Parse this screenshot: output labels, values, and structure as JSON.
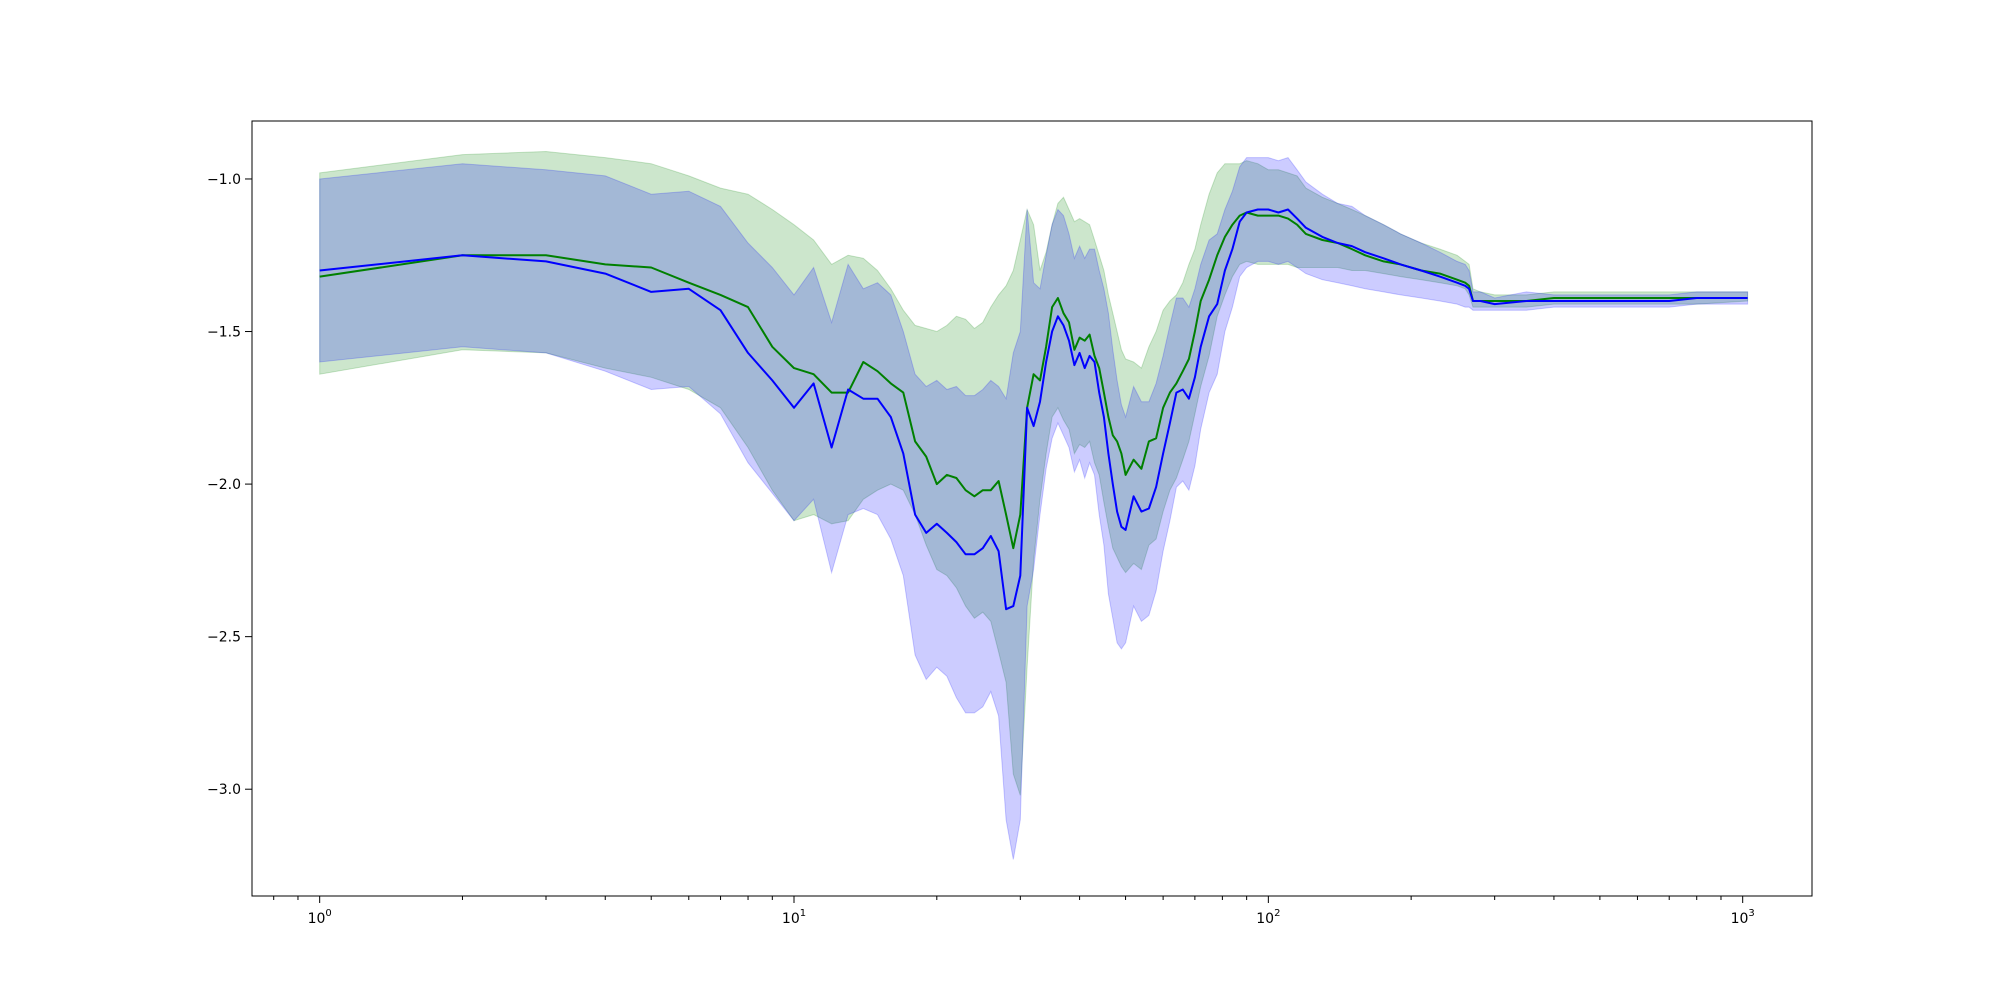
{
  "chart_data": {
    "type": "line",
    "title": "",
    "xlabel": "",
    "ylabel": "",
    "xscale": "log",
    "xlim": [
      0.72,
      1400
    ],
    "ylim": [
      -3.35,
      -0.81
    ],
    "grid": false,
    "x_ticks": [
      {
        "value": 1,
        "base": "10",
        "exp": "0"
      },
      {
        "value": 10,
        "base": "10",
        "exp": "1"
      },
      {
        "value": 100,
        "base": "10",
        "exp": "2"
      },
      {
        "value": 1000,
        "base": "10",
        "exp": "3"
      }
    ],
    "y_ticks": [
      {
        "value": -1.0,
        "label": "−1.0"
      },
      {
        "value": -1.5,
        "label": "−1.5"
      },
      {
        "value": -2.0,
        "label": "−2.0"
      },
      {
        "value": -2.5,
        "label": "−2.5"
      },
      {
        "value": -3.0,
        "label": "−3.0"
      }
    ],
    "series": [
      {
        "color": "#008000",
        "band_color": "#008000",
        "band_opacity": 0.2,
        "x": [
          1,
          2,
          3,
          4,
          5,
          6,
          7,
          8,
          9,
          10,
          11,
          12,
          13,
          14,
          15,
          16,
          17,
          18,
          19,
          20,
          21,
          22,
          23,
          24,
          25,
          26,
          27,
          28,
          29,
          30,
          31,
          32,
          33,
          34,
          35,
          36,
          37,
          38,
          39,
          40,
          41,
          42,
          43,
          44,
          45,
          46,
          47,
          48,
          49,
          50,
          52,
          54,
          56,
          58,
          60,
          62,
          64,
          66,
          68,
          70,
          72,
          75,
          78,
          81,
          84,
          87,
          90,
          95,
          100,
          105,
          110,
          115,
          120,
          130,
          140,
          150,
          160,
          175,
          190,
          210,
          230,
          250,
          260,
          265,
          270,
          280,
          300,
          350,
          400,
          500,
          600,
          700,
          800,
          1024
        ],
        "values": [
          -1.32,
          -1.25,
          -1.25,
          -1.28,
          -1.29,
          -1.34,
          -1.38,
          -1.42,
          -1.55,
          -1.62,
          -1.64,
          -1.7,
          -1.7,
          -1.6,
          -1.63,
          -1.67,
          -1.7,
          -1.86,
          -1.91,
          -2.0,
          -1.97,
          -1.98,
          -2.02,
          -2.04,
          -2.02,
          -2.02,
          -1.99,
          -2.1,
          -2.21,
          -2.1,
          -1.75,
          -1.64,
          -1.66,
          -1.55,
          -1.42,
          -1.39,
          -1.44,
          -1.47,
          -1.56,
          -1.52,
          -1.53,
          -1.51,
          -1.58,
          -1.62,
          -1.7,
          -1.78,
          -1.84,
          -1.86,
          -1.9,
          -1.97,
          -1.92,
          -1.95,
          -1.86,
          -1.85,
          -1.75,
          -1.7,
          -1.67,
          -1.63,
          -1.59,
          -1.5,
          -1.4,
          -1.33,
          -1.25,
          -1.19,
          -1.15,
          -1.12,
          -1.11,
          -1.12,
          -1.12,
          -1.12,
          -1.13,
          -1.15,
          -1.18,
          -1.2,
          -1.21,
          -1.23,
          -1.25,
          -1.27,
          -1.28,
          -1.3,
          -1.31,
          -1.33,
          -1.34,
          -1.35,
          -1.4,
          -1.4,
          -1.4,
          -1.4,
          -1.39,
          -1.39,
          -1.39,
          -1.39,
          -1.39,
          -1.39
        ],
        "lower": [
          -1.64,
          -1.56,
          -1.57,
          -1.62,
          -1.65,
          -1.69,
          -1.75,
          -1.88,
          -2.02,
          -2.12,
          -2.1,
          -2.13,
          -2.12,
          -2.05,
          -2.02,
          -2.0,
          -2.02,
          -2.1,
          -2.2,
          -2.28,
          -2.3,
          -2.34,
          -2.4,
          -2.44,
          -2.42,
          -2.45,
          -2.55,
          -2.65,
          -2.95,
          -3.02,
          -2.6,
          -2.25,
          -2.05,
          -1.9,
          -1.78,
          -1.75,
          -1.79,
          -1.82,
          -1.9,
          -1.87,
          -1.88,
          -1.86,
          -1.93,
          -1.97,
          -2.06,
          -2.14,
          -2.21,
          -2.24,
          -2.27,
          -2.29,
          -2.26,
          -2.28,
          -2.2,
          -2.18,
          -2.09,
          -2.02,
          -1.98,
          -1.92,
          -1.86,
          -1.77,
          -1.68,
          -1.58,
          -1.45,
          -1.38,
          -1.32,
          -1.28,
          -1.27,
          -1.28,
          -1.28,
          -1.28,
          -1.28,
          -1.29,
          -1.29,
          -1.29,
          -1.29,
          -1.3,
          -1.3,
          -1.31,
          -1.32,
          -1.33,
          -1.34,
          -1.35,
          -1.36,
          -1.38,
          -1.42,
          -1.42,
          -1.42,
          -1.42,
          -1.41,
          -1.41,
          -1.41,
          -1.41,
          -1.41,
          -1.4
        ],
        "upper": [
          -0.98,
          -0.92,
          -0.91,
          -0.93,
          -0.95,
          -0.99,
          -1.03,
          -1.05,
          -1.1,
          -1.15,
          -1.2,
          -1.28,
          -1.25,
          -1.26,
          -1.3,
          -1.36,
          -1.43,
          -1.48,
          -1.49,
          -1.5,
          -1.48,
          -1.45,
          -1.46,
          -1.49,
          -1.47,
          -1.42,
          -1.38,
          -1.35,
          -1.3,
          -1.2,
          -1.1,
          -1.15,
          -1.3,
          -1.24,
          -1.15,
          -1.08,
          -1.06,
          -1.1,
          -1.14,
          -1.13,
          -1.14,
          -1.15,
          -1.2,
          -1.25,
          -1.3,
          -1.38,
          -1.44,
          -1.5,
          -1.56,
          -1.59,
          -1.6,
          -1.62,
          -1.55,
          -1.5,
          -1.43,
          -1.4,
          -1.38,
          -1.34,
          -1.28,
          -1.23,
          -1.15,
          -1.05,
          -0.98,
          -0.95,
          -0.95,
          -0.95,
          -0.94,
          -0.95,
          -0.97,
          -0.97,
          -0.98,
          -0.99,
          -1.03,
          -1.06,
          -1.08,
          -1.1,
          -1.12,
          -1.15,
          -1.18,
          -1.21,
          -1.23,
          -1.25,
          -1.27,
          -1.28,
          -1.36,
          -1.37,
          -1.38,
          -1.38,
          -1.37,
          -1.37,
          -1.37,
          -1.37,
          -1.37,
          -1.37
        ]
      },
      {
        "color": "#0000ff",
        "band_color": "#0000ff",
        "band_opacity": 0.2,
        "x": [
          1,
          2,
          3,
          4,
          5,
          6,
          7,
          8,
          9,
          10,
          11,
          12,
          13,
          14,
          15,
          16,
          17,
          18,
          19,
          20,
          21,
          22,
          23,
          24,
          25,
          26,
          27,
          28,
          29,
          30,
          31,
          32,
          33,
          34,
          35,
          36,
          37,
          38,
          39,
          40,
          41,
          42,
          43,
          44,
          45,
          46,
          47,
          48,
          49,
          50,
          52,
          54,
          56,
          58,
          60,
          62,
          64,
          66,
          68,
          70,
          72,
          75,
          78,
          81,
          84,
          87,
          90,
          95,
          100,
          105,
          110,
          115,
          120,
          130,
          140,
          150,
          160,
          175,
          190,
          210,
          230,
          250,
          260,
          265,
          270,
          280,
          300,
          350,
          400,
          500,
          600,
          700,
          800,
          1024
        ],
        "values": [
          -1.3,
          -1.25,
          -1.27,
          -1.31,
          -1.37,
          -1.36,
          -1.43,
          -1.57,
          -1.66,
          -1.75,
          -1.67,
          -1.88,
          -1.69,
          -1.72,
          -1.72,
          -1.78,
          -1.9,
          -2.1,
          -2.16,
          -2.13,
          -2.16,
          -2.19,
          -2.23,
          -2.23,
          -2.21,
          -2.17,
          -2.22,
          -2.41,
          -2.4,
          -2.3,
          -1.75,
          -1.81,
          -1.73,
          -1.6,
          -1.5,
          -1.45,
          -1.48,
          -1.53,
          -1.61,
          -1.57,
          -1.62,
          -1.58,
          -1.6,
          -1.7,
          -1.78,
          -1.9,
          -2.0,
          -2.09,
          -2.14,
          -2.15,
          -2.04,
          -2.09,
          -2.08,
          -2.01,
          -1.9,
          -1.8,
          -1.7,
          -1.69,
          -1.72,
          -1.65,
          -1.55,
          -1.45,
          -1.41,
          -1.3,
          -1.23,
          -1.14,
          -1.11,
          -1.1,
          -1.1,
          -1.11,
          -1.1,
          -1.13,
          -1.16,
          -1.19,
          -1.21,
          -1.22,
          -1.24,
          -1.26,
          -1.28,
          -1.3,
          -1.32,
          -1.34,
          -1.35,
          -1.36,
          -1.4,
          -1.4,
          -1.41,
          -1.4,
          -1.4,
          -1.4,
          -1.4,
          -1.4,
          -1.39,
          -1.39
        ],
        "lower": [
          -1.6,
          -1.55,
          -1.57,
          -1.63,
          -1.69,
          -1.68,
          -1.77,
          -1.93,
          -2.03,
          -2.12,
          -2.05,
          -2.29,
          -2.1,
          -2.08,
          -2.1,
          -2.18,
          -2.3,
          -2.56,
          -2.64,
          -2.6,
          -2.63,
          -2.7,
          -2.75,
          -2.75,
          -2.73,
          -2.68,
          -2.76,
          -3.1,
          -3.23,
          -3.1,
          -2.4,
          -2.28,
          -2.1,
          -1.95,
          -1.85,
          -1.8,
          -1.84,
          -1.88,
          -1.96,
          -1.92,
          -1.98,
          -1.93,
          -1.97,
          -2.1,
          -2.2,
          -2.36,
          -2.44,
          -2.52,
          -2.54,
          -2.52,
          -2.4,
          -2.45,
          -2.43,
          -2.35,
          -2.22,
          -2.12,
          -2.01,
          -1.99,
          -2.02,
          -1.94,
          -1.82,
          -1.7,
          -1.64,
          -1.5,
          -1.42,
          -1.32,
          -1.29,
          -1.27,
          -1.27,
          -1.28,
          -1.27,
          -1.29,
          -1.31,
          -1.33,
          -1.34,
          -1.35,
          -1.36,
          -1.37,
          -1.38,
          -1.39,
          -1.4,
          -1.41,
          -1.42,
          -1.42,
          -1.43,
          -1.43,
          -1.43,
          -1.43,
          -1.42,
          -1.42,
          -1.42,
          -1.42,
          -1.41,
          -1.41
        ],
        "upper": [
          -1.0,
          -0.95,
          -0.97,
          -0.99,
          -1.05,
          -1.04,
          -1.09,
          -1.21,
          -1.29,
          -1.38,
          -1.29,
          -1.47,
          -1.28,
          -1.36,
          -1.34,
          -1.38,
          -1.5,
          -1.64,
          -1.68,
          -1.66,
          -1.69,
          -1.68,
          -1.71,
          -1.71,
          -1.69,
          -1.66,
          -1.68,
          -1.72,
          -1.57,
          -1.5,
          -1.1,
          -1.34,
          -1.36,
          -1.25,
          -1.15,
          -1.1,
          -1.12,
          -1.18,
          -1.26,
          -1.22,
          -1.26,
          -1.23,
          -1.23,
          -1.3,
          -1.36,
          -1.44,
          -1.56,
          -1.66,
          -1.74,
          -1.78,
          -1.68,
          -1.73,
          -1.73,
          -1.67,
          -1.58,
          -1.48,
          -1.39,
          -1.39,
          -1.42,
          -1.36,
          -1.28,
          -1.2,
          -1.18,
          -1.1,
          -1.04,
          -0.96,
          -0.93,
          -0.93,
          -0.93,
          -0.94,
          -0.93,
          -0.97,
          -1.01,
          -1.05,
          -1.08,
          -1.09,
          -1.12,
          -1.15,
          -1.18,
          -1.21,
          -1.24,
          -1.27,
          -1.28,
          -1.3,
          -1.37,
          -1.37,
          -1.39,
          -1.37,
          -1.38,
          -1.38,
          -1.38,
          -1.38,
          -1.37,
          -1.37
        ]
      }
    ]
  }
}
